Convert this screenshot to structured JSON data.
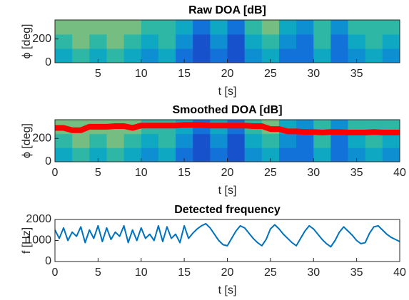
{
  "chart_data": [
    {
      "type": "heatmap",
      "title": "Raw DOA [dB]",
      "xlabel": "t [s]",
      "ylabel": "ϕ [deg]",
      "xlim": [
        0,
        40
      ],
      "xticks": [
        5,
        10,
        15,
        20,
        25,
        30,
        35
      ],
      "ylim": [
        0,
        360
      ],
      "yticks": [
        0,
        200
      ],
      "zlim": [
        0,
        10
      ],
      "colormap": [
        "#352a87",
        "#0f5cdd",
        "#1481d6",
        "#06a4ca",
        "#2eb7a4",
        "#87bf77",
        "#d1bb59",
        "#fec832",
        "#f9fb0e"
      ],
      "z": [
        [
          4,
          5,
          4,
          5,
          4,
          3,
          4,
          2,
          1,
          2,
          1,
          3,
          4,
          2,
          2,
          4,
          2,
          3,
          4,
          3
        ],
        [
          5,
          6,
          5,
          6,
          5,
          4,
          5,
          3,
          1,
          3,
          1,
          4,
          5,
          3,
          2,
          5,
          2,
          4,
          5,
          4
        ],
        [
          6,
          6,
          6,
          6,
          6,
          5,
          5,
          4,
          2,
          4,
          2,
          5,
          6,
          4,
          3,
          5,
          3,
          5,
          5,
          5
        ]
      ]
    },
    {
      "type": "heatmap",
      "title": "Smoothed DOA [dB]",
      "xlabel": "t [s]",
      "ylabel": "ϕ [deg]",
      "xlim": [
        0,
        40
      ],
      "xticks": [
        0,
        5,
        10,
        15,
        20,
        25,
        30,
        35,
        40
      ],
      "ylim": [
        0,
        360
      ],
      "yticks": [
        0,
        200
      ],
      "zlim": [
        0,
        10
      ],
      "colormap": [
        "#352a87",
        "#0f5cdd",
        "#1481d6",
        "#06a4ca",
        "#2eb7a4",
        "#87bf77",
        "#d1bb59",
        "#fec832",
        "#f9fb0e"
      ],
      "z": [
        [
          4,
          5,
          4,
          5,
          4,
          3,
          4,
          2,
          1,
          2,
          1,
          3,
          4,
          2,
          2,
          4,
          2,
          3,
          4,
          3
        ],
        [
          5,
          6,
          5,
          6,
          5,
          4,
          5,
          3,
          1,
          3,
          1,
          4,
          5,
          3,
          2,
          5,
          2,
          4,
          5,
          4
        ],
        [
          6,
          6,
          6,
          6,
          6,
          5,
          5,
          4,
          2,
          4,
          2,
          5,
          6,
          4,
          3,
          5,
          3,
          5,
          5,
          5
        ]
      ],
      "series": [
        {
          "color": "#ff0000",
          "x": [
            0,
            1,
            2,
            3,
            4,
            5,
            6,
            7,
            8,
            9,
            10,
            11,
            12,
            13,
            14,
            15,
            16,
            17,
            18,
            19,
            20,
            21,
            22,
            23,
            24,
            25,
            26,
            27,
            28,
            29,
            30,
            31,
            32,
            33,
            34,
            35,
            36,
            37,
            38,
            39,
            40
          ],
          "values": [
            290,
            290,
            270,
            270,
            300,
            300,
            300,
            305,
            305,
            290,
            310,
            310,
            310,
            310,
            310,
            315,
            315,
            315,
            310,
            310,
            310,
            310,
            310,
            305,
            305,
            280,
            280,
            260,
            260,
            255,
            255,
            250,
            255,
            255,
            250,
            250,
            250,
            255,
            250,
            250,
            250
          ]
        }
      ]
    },
    {
      "type": "line",
      "title": "Detected frequency",
      "xlabel": "t [s]",
      "ylabel": "f [Hz]",
      "xlim": [
        0,
        40
      ],
      "xticks": [
        0,
        5,
        10,
        15,
        20,
        25,
        30,
        35,
        40
      ],
      "ylim": [
        0,
        2000
      ],
      "yticks": [
        0,
        1000,
        2000
      ],
      "series": [
        {
          "color": "#0072bd",
          "x": [
            0,
            0.5,
            1,
            1.5,
            2,
            2.5,
            3,
            3.5,
            4,
            4.5,
            5,
            5.5,
            6,
            6.5,
            7,
            7.5,
            8,
            8.5,
            9,
            9.5,
            10,
            10.5,
            11,
            11.5,
            12,
            12.5,
            13,
            13.5,
            14,
            14.5,
            15,
            15.5,
            16,
            16.5,
            17,
            17.5,
            18,
            18.5,
            19,
            19.5,
            20,
            20.5,
            21,
            21.5,
            22,
            22.5,
            23,
            23.5,
            24,
            24.5,
            25,
            25.5,
            26,
            26.5,
            27,
            27.5,
            28,
            28.5,
            29,
            29.5,
            30,
            30.5,
            31,
            31.5,
            32,
            32.5,
            33,
            33.5,
            34,
            34.5,
            35,
            35.5,
            36,
            36.5,
            37,
            37.5,
            38,
            38.5,
            39,
            39.5,
            40
          ],
          "values": [
            1500,
            1100,
            1600,
            1000,
            1400,
            1200,
            1650,
            900,
            1500,
            1100,
            1700,
            950,
            1600,
            1050,
            1400,
            1200,
            1700,
            900,
            1500,
            1000,
            1600,
            1100,
            1300,
            1000,
            1700,
            950,
            1650,
            1100,
            1300,
            900,
            1700,
            1100,
            1350,
            1550,
            1700,
            1800,
            1600,
            1300,
            1000,
            800,
            750,
            1100,
            1450,
            1700,
            1600,
            1350,
            1100,
            900,
            750,
            1050,
            1550,
            1750,
            1550,
            1300,
            1100,
            900,
            750,
            1100,
            1450,
            1700,
            1550,
            1300,
            1050,
            850,
            700,
            1000,
            1400,
            1650,
            1450,
            1250,
            1000,
            850,
            900,
            1350,
            1650,
            1700,
            1500,
            1300,
            1150,
            1050,
            950
          ]
        }
      ]
    }
  ]
}
